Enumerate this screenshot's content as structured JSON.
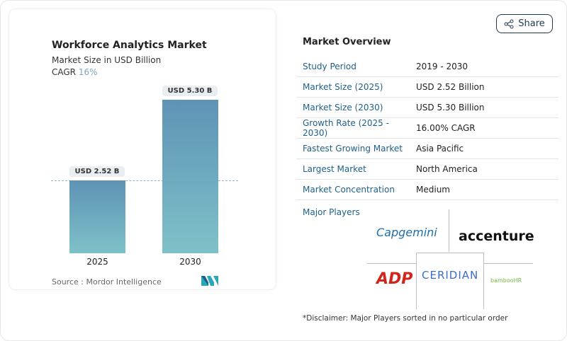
{
  "chart": {
    "title": "Workforce Analytics Market",
    "subtitle": "Market Size in USD Billion",
    "cagr_label": "CAGR",
    "cagr_value": "16%",
    "source": "Source :  Mordor Intelligence"
  },
  "chart_data": {
    "type": "bar",
    "categories": [
      "2025",
      "2030"
    ],
    "values": [
      2.52,
      5.3
    ],
    "data_labels": [
      "USD 2.52 B",
      "USD 5.30 B"
    ],
    "title": "Workforce Analytics Market",
    "ylabel": "Market Size in USD Billion",
    "ylim": [
      0,
      5.3
    ],
    "colors": [
      "#5f93b6",
      "#7fc1c8"
    ]
  },
  "share": {
    "label": "Share",
    "icon": "share-icon"
  },
  "overview": {
    "title": "Market Overview",
    "rows": [
      {
        "label": "Study Period",
        "value": "2019 - 2030"
      },
      {
        "label": "Market Size (2025)",
        "value": "USD 2.52 Billion"
      },
      {
        "label": "Market Size (2030)",
        "value": "USD 5.30 Billion"
      },
      {
        "label": "Growth Rate (2025 - 2030)",
        "value": "16.00% CAGR"
      },
      {
        "label": "Fastest Growing Market",
        "value": "Asia Pacific"
      },
      {
        "label": "Largest Market",
        "value": "North America"
      },
      {
        "label": "Market Concentration",
        "value": "Medium"
      }
    ]
  },
  "players": {
    "title": "Major Players",
    "logos": [
      "Capgemini",
      "accenture",
      "ADP",
      "CERIDIAN",
      "bambooHR"
    ]
  },
  "disclaimer": "*Disclaimer: Major Players sorted in no particular order"
}
